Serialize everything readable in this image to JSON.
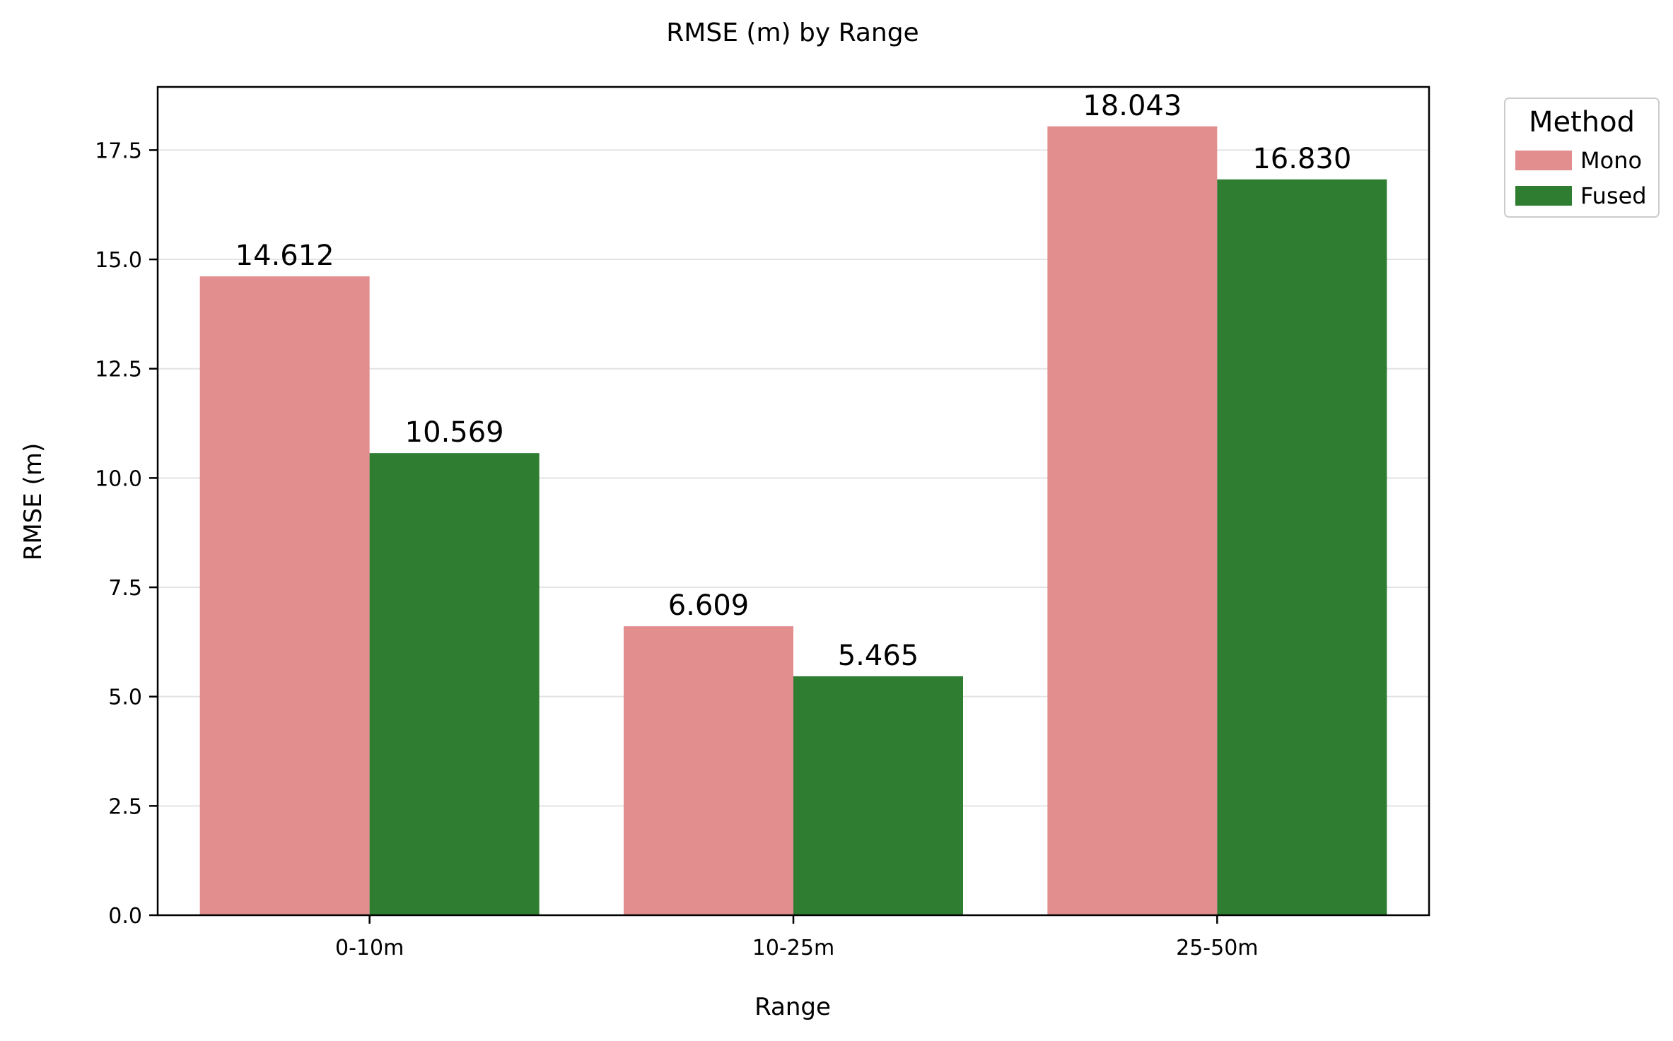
{
  "chart_data": {
    "type": "bar",
    "title": "RMSE (m) by Range",
    "xlabel": "Range",
    "ylabel": "RMSE (m)",
    "categories": [
      "0-10m",
      "10-25m",
      "25-50m"
    ],
    "series": [
      {
        "name": "Mono",
        "values": [
          14.612,
          6.609,
          18.043
        ],
        "labels": [
          "14.612",
          "6.609",
          "18.043"
        ],
        "color": "#E28E8F"
      },
      {
        "name": "Fused",
        "values": [
          10.569,
          5.465,
          16.83
        ],
        "labels": [
          "10.569",
          "5.465",
          "16.830"
        ],
        "color": "#2F7D30"
      }
    ],
    "ylim": [
      0,
      18.945
    ],
    "yticks": [
      0,
      2.5,
      5,
      7.5,
      10,
      12.5,
      15,
      17.5
    ],
    "ytick_labels": [
      "0.0",
      "2.5",
      "5.0",
      "7.5",
      "10.0",
      "12.5",
      "15.0",
      "17.5"
    ],
    "grid": "y",
    "legend": {
      "title": "Method",
      "placement": "outside-top-right"
    }
  }
}
